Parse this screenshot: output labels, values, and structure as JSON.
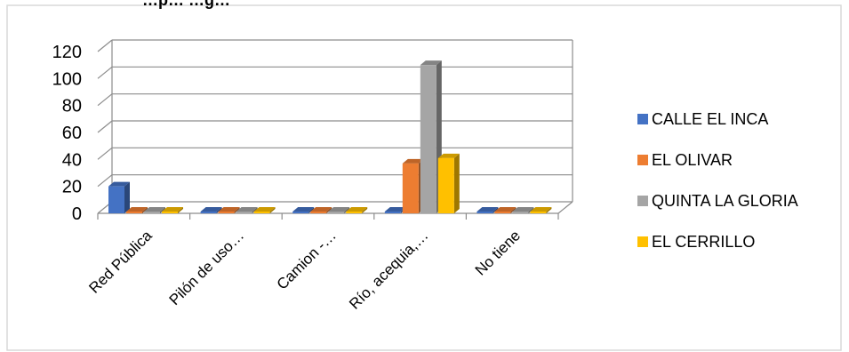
{
  "chart_data": {
    "type": "bar",
    "title": "…p… …g…",
    "categories": [
      "Red Pública",
      "Pilón de uso…",
      "Camion -…",
      "Río, acequia,…",
      "No tiene"
    ],
    "series": [
      {
        "name": "CALLE EL INCA",
        "color": "#4472C4",
        "values": [
          20,
          0,
          0,
          0,
          0
        ]
      },
      {
        "name": "EL OLIVAR",
        "color": "#ED7D31",
        "values": [
          0,
          0,
          0,
          37,
          0
        ]
      },
      {
        "name": "QUINTA LA GLORIA",
        "color": "#A5A5A5",
        "values": [
          0,
          0,
          0,
          110,
          0
        ]
      },
      {
        "name": "EL CERRILLO",
        "color": "#FFC000",
        "values": [
          0,
          0,
          0,
          41,
          0
        ]
      }
    ],
    "y_ticks": [
      "0",
      "20",
      "40",
      "60",
      "80",
      "100",
      "120"
    ],
    "ylim": [
      0,
      120
    ],
    "grid": true,
    "legend_position": "right"
  }
}
